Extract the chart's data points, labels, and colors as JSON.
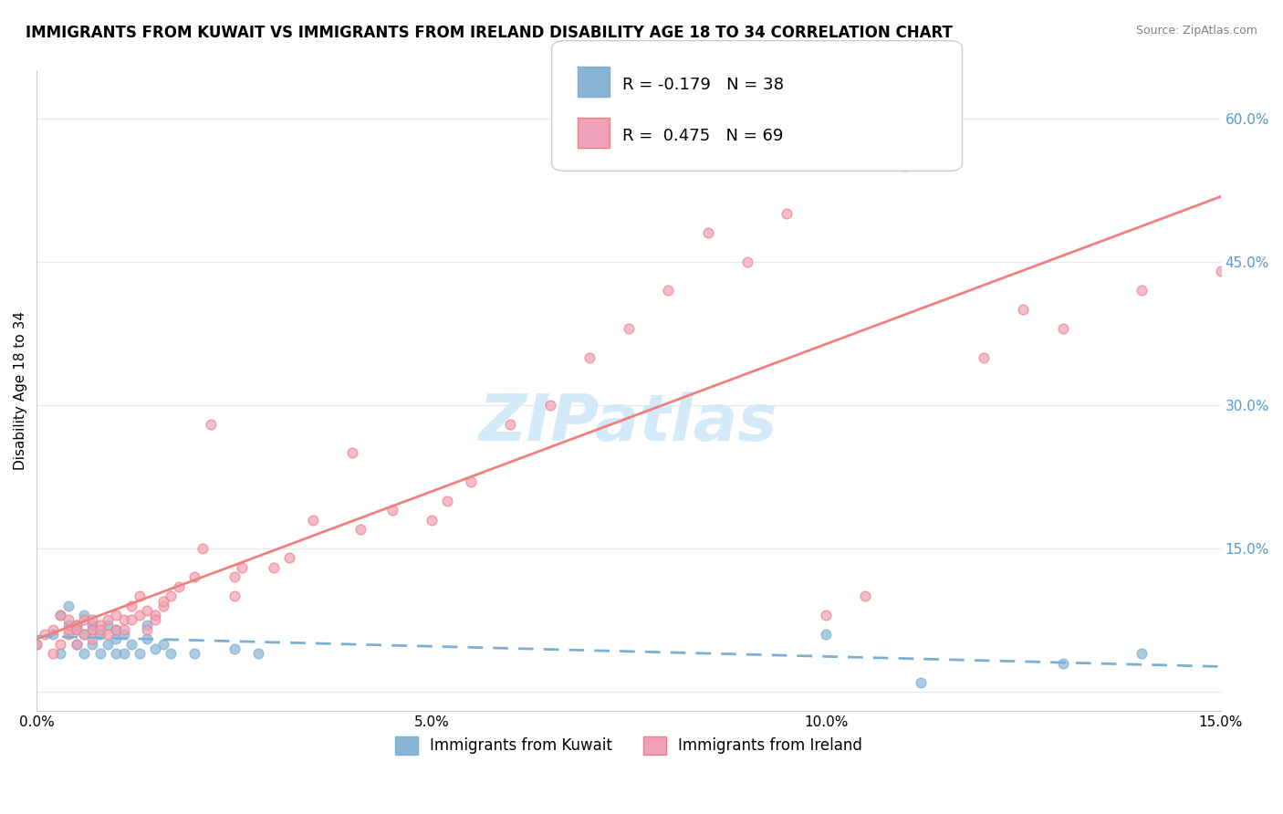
{
  "title": "IMMIGRANTS FROM KUWAIT VS IMMIGRANTS FROM IRELAND DISABILITY AGE 18 TO 34 CORRELATION CHART",
  "source": "Source: ZipAtlas.com",
  "xlabel_bottom": "",
  "ylabel": "Disability Age 18 to 34",
  "legend_label1": "Immigrants from Kuwait",
  "legend_label2": "Immigrants from Ireland",
  "R1": -0.179,
  "N1": 38,
  "R2": 0.475,
  "N2": 69,
  "xlim": [
    0.0,
    0.15
  ],
  "ylim": [
    -0.02,
    0.65
  ],
  "yticks": [
    0.0,
    0.15,
    0.3,
    0.45,
    0.6
  ],
  "ytick_labels": [
    "",
    "15.0%",
    "30.0%",
    "45.0%",
    "60.0%"
  ],
  "xticks": [
    0.0,
    0.05,
    0.1,
    0.15
  ],
  "xtick_labels": [
    "0.0%",
    "5.0%",
    "10.0%",
    "15.0%"
  ],
  "color_kuwait": "#a8c4e0",
  "color_ireland": "#f4a8b8",
  "color_kuwait_line": "#7bafd4",
  "color_ireland_line": "#f08080",
  "color_kuwait_scatter": "#89b4d4",
  "color_ireland_scatter": "#f0a0b8",
  "watermark": "ZIPatlas",
  "watermark_color": "#d0e8f8",
  "background_color": "#ffffff",
  "grid_color": "#e0e0e0",
  "title_fontsize": 12,
  "axis_label_fontsize": 11,
  "tick_fontsize": 11,
  "legend_fontsize": 13,
  "right_ytick_color": "#5599cc",
  "kuwait_x": [
    0.0,
    0.002,
    0.003,
    0.003,
    0.004,
    0.004,
    0.005,
    0.005,
    0.005,
    0.006,
    0.006,
    0.006,
    0.007,
    0.007,
    0.007,
    0.008,
    0.008,
    0.009,
    0.009,
    0.01,
    0.01,
    0.01,
    0.011,
    0.011,
    0.012,
    0.013,
    0.014,
    0.014,
    0.015,
    0.016,
    0.017,
    0.02,
    0.025,
    0.028,
    0.1,
    0.112,
    0.13,
    0.14
  ],
  "kuwait_y": [
    0.05,
    0.06,
    0.08,
    0.04,
    0.07,
    0.09,
    0.05,
    0.065,
    0.07,
    0.04,
    0.06,
    0.08,
    0.05,
    0.065,
    0.07,
    0.04,
    0.06,
    0.05,
    0.07,
    0.04,
    0.055,
    0.065,
    0.04,
    0.06,
    0.05,
    0.04,
    0.055,
    0.07,
    0.045,
    0.05,
    0.04,
    0.04,
    0.045,
    0.04,
    0.06,
    0.01,
    0.03,
    0.04
  ],
  "ireland_x": [
    0.0,
    0.001,
    0.002,
    0.002,
    0.003,
    0.003,
    0.004,
    0.004,
    0.004,
    0.005,
    0.005,
    0.005,
    0.006,
    0.006,
    0.007,
    0.007,
    0.007,
    0.008,
    0.008,
    0.009,
    0.009,
    0.01,
    0.01,
    0.011,
    0.011,
    0.012,
    0.012,
    0.013,
    0.013,
    0.014,
    0.014,
    0.015,
    0.015,
    0.016,
    0.016,
    0.017,
    0.018,
    0.02,
    0.021,
    0.022,
    0.025,
    0.025,
    0.026,
    0.03,
    0.032,
    0.035,
    0.04,
    0.041,
    0.045,
    0.05,
    0.052,
    0.055,
    0.06,
    0.065,
    0.07,
    0.075,
    0.08,
    0.085,
    0.09,
    0.095,
    0.1,
    0.105,
    0.11,
    0.115,
    0.12,
    0.125,
    0.13,
    0.14,
    0.15
  ],
  "ireland_y": [
    0.05,
    0.06,
    0.04,
    0.065,
    0.05,
    0.08,
    0.06,
    0.065,
    0.075,
    0.07,
    0.05,
    0.065,
    0.06,
    0.075,
    0.065,
    0.075,
    0.055,
    0.07,
    0.065,
    0.06,
    0.075,
    0.065,
    0.08,
    0.075,
    0.065,
    0.09,
    0.075,
    0.08,
    0.1,
    0.065,
    0.085,
    0.08,
    0.075,
    0.09,
    0.095,
    0.1,
    0.11,
    0.12,
    0.15,
    0.28,
    0.12,
    0.1,
    0.13,
    0.13,
    0.14,
    0.18,
    0.25,
    0.17,
    0.19,
    0.18,
    0.2,
    0.22,
    0.28,
    0.3,
    0.35,
    0.38,
    0.42,
    0.48,
    0.45,
    0.5,
    0.08,
    0.1,
    0.55,
    0.6,
    0.35,
    0.4,
    0.38,
    0.42,
    0.44
  ]
}
